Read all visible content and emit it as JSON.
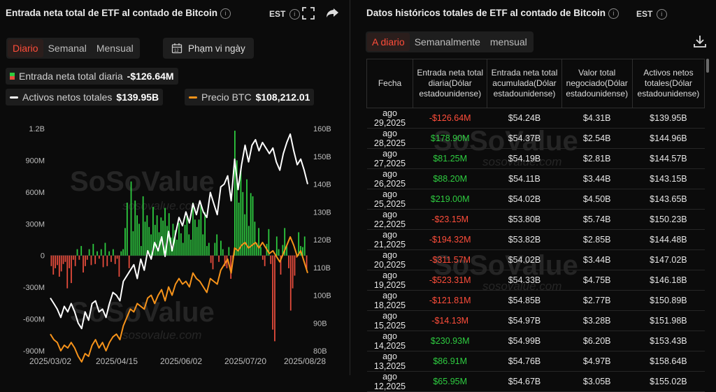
{
  "left": {
    "title": "Entrada neta total de ETF al contado de Bitcoin",
    "tz": "EST",
    "tabs": [
      "Diario",
      "Semanal",
      "Mensual"
    ],
    "range_label": "Phạm vi ngày",
    "legend_flow_label": "Entrada neta total diaria",
    "legend_flow_value": "-$126.64M",
    "legend_assets_label": "Activos netos totales",
    "legend_assets_value": "$139.95B",
    "legend_price_label": "Precio BTC",
    "legend_price_value": "$108,212.01"
  },
  "right": {
    "title": "Datos históricos totales de ETF al contado de Bitcoin",
    "tz": "EST",
    "tabs": [
      "A diario",
      "Semanalmente",
      "mensual"
    ],
    "headers": [
      "Fecha",
      "Entrada neta total diaria(Dólar estadounidense)",
      "Entrada neta total acumulada(Dólar estadounidense)",
      "Valor total negociado(Dólar estadounidense)",
      "Activos netos totales(Dólar estadounidense)"
    ],
    "rows": [
      [
        "ago 29,2025",
        "-$126.64M",
        "$54.24B",
        "$4.31B",
        "$139.95B"
      ],
      [
        "ago 28,2025",
        "$178.90M",
        "$54.37B",
        "$2.54B",
        "$144.96B"
      ],
      [
        "ago 27,2025",
        "$81.25M",
        "$54.19B",
        "$2.81B",
        "$144.57B"
      ],
      [
        "ago 26,2025",
        "$88.20M",
        "$54.11B",
        "$3.44B",
        "$143.15B"
      ],
      [
        "ago 25,2025",
        "$219.00M",
        "$54.02B",
        "$4.50B",
        "$143.65B"
      ],
      [
        "ago 22,2025",
        "-$23.15M",
        "$53.80B",
        "$5.74B",
        "$150.23B"
      ],
      [
        "ago 21,2025",
        "-$194.32M",
        "$53.82B",
        "$2.85B",
        "$144.48B"
      ],
      [
        "ago 20,2025",
        "-$311.57M",
        "$54.02B",
        "$3.44B",
        "$147.02B"
      ],
      [
        "ago 19,2025",
        "-$523.31M",
        "$54.33B",
        "$4.75B",
        "$146.18B"
      ],
      [
        "ago 18,2025",
        "-$121.81M",
        "$54.85B",
        "$2.77B",
        "$150.89B"
      ],
      [
        "ago 15,2025",
        "-$14.13M",
        "$54.97B",
        "$3.28B",
        "$151.98B"
      ],
      [
        "ago 14,2025",
        "$230.93M",
        "$54.99B",
        "$6.20B",
        "$153.43B"
      ],
      [
        "ago 13,2025",
        "$86.91M",
        "$54.76B",
        "$4.97B",
        "$158.64B"
      ],
      [
        "ago 12,2025",
        "$65.95M",
        "$54.67B",
        "$3.05B",
        "$155.02B"
      ]
    ]
  },
  "watermark": {
    "brand": "SoSoValue",
    "url": "sosovalue.com"
  },
  "colors": {
    "positive": "#2ecc40",
    "negative": "#e74c3c",
    "assets_line": "#ffffff",
    "price_line": "#f7931a",
    "accent": "#ff4d3a"
  },
  "chart_data": {
    "type": "bar",
    "x_ticks": [
      "2025/03/02",
      "2025/04/15",
      "2025/06/02",
      "2025/07/20",
      "2025/08/28"
    ],
    "y_left_ticks": [
      "1.2B",
      "900M",
      "600M",
      "300M",
      "0",
      "-300M",
      "-600M",
      "-900M"
    ],
    "y_right_ticks": [
      "160B",
      "150B",
      "140B",
      "130B",
      "120B",
      "110B",
      "100B",
      "90B",
      "80B"
    ],
    "ylim_left": [
      -900,
      1200
    ],
    "ylim_right": [
      80,
      160
    ],
    "series": [
      {
        "name": "Entrada neta total diaria",
        "type": "bar",
        "values": [
          -100,
          -180,
          -120,
          -90,
          -200,
          -150,
          -80,
          -60,
          -310,
          -120,
          -260,
          -40,
          -100,
          60,
          -40,
          90,
          -160,
          -100,
          -40,
          60,
          -90,
          110,
          -80,
          40,
          -30,
          60,
          -110,
          120,
          -100,
          40,
          -60,
          60,
          -80,
          -30,
          -200,
          40,
          60,
          260,
          500,
          -120,
          700,
          230,
          520,
          380,
          300,
          90,
          560,
          320,
          380,
          270,
          200,
          460,
          290,
          380,
          220,
          360,
          330,
          450,
          280,
          400,
          170,
          300,
          240,
          150,
          310,
          210,
          120,
          290,
          380,
          200,
          150,
          500,
          340,
          270,
          340,
          480,
          200,
          410,
          90,
          120,
          -70,
          -130,
          120,
          200,
          -60,
          140,
          60,
          -100,
          -120,
          80,
          -220,
          -40,
          1180,
          900,
          500,
          820,
          600,
          390,
          720,
          280,
          590,
          560,
          320,
          120,
          260,
          80,
          -40,
          -100,
          110,
          250,
          -80,
          -700,
          -810,
          180,
          60,
          -180,
          100,
          260,
          90,
          -120,
          -520,
          -310,
          -190,
          -20,
          220,
          90,
          80,
          180,
          -127
        ]
      },
      {
        "name": "Activos netos totales",
        "type": "line",
        "unit": "B",
        "values": [
          99,
          97,
          95,
          92,
          96,
          94,
          97,
          94,
          90,
          88,
          94,
          91,
          97,
          98,
          94,
          95,
          92,
          97,
          101,
          100,
          98,
          105,
          107,
          109,
          111,
          106,
          113,
          109,
          116,
          113,
          119,
          116,
          121,
          114,
          123,
          116,
          122,
          128,
          125,
          130,
          126,
          133,
          129,
          134,
          130,
          128,
          137,
          133,
          129,
          139,
          140,
          143,
          134,
          149,
          138,
          147,
          154,
          148,
          154,
          156,
          152,
          155,
          153,
          151,
          153,
          148,
          145,
          151,
          155,
          158,
          152,
          147,
          149,
          145,
          140
        ]
      },
      {
        "name": "Precio BTC",
        "type": "line",
        "unit": "K USD",
        "values": [
          86,
          84,
          83,
          80,
          82,
          81,
          83,
          81,
          78,
          76,
          79,
          78,
          82,
          84,
          81,
          83,
          80,
          83,
          85,
          86,
          84,
          89,
          92,
          95,
          94,
          97,
          96,
          95,
          99,
          100,
          97,
          100,
          102,
          98,
          103,
          100,
          104,
          106,
          104,
          105,
          103,
          108,
          106,
          105,
          103,
          101,
          106,
          105,
          104,
          109,
          111,
          113,
          108,
          117,
          116,
          118,
          119,
          117,
          118,
          119,
          117,
          119,
          117,
          115,
          116,
          114,
          112,
          115,
          118,
          121,
          118,
          114,
          116,
          112,
          108
        ]
      }
    ]
  }
}
